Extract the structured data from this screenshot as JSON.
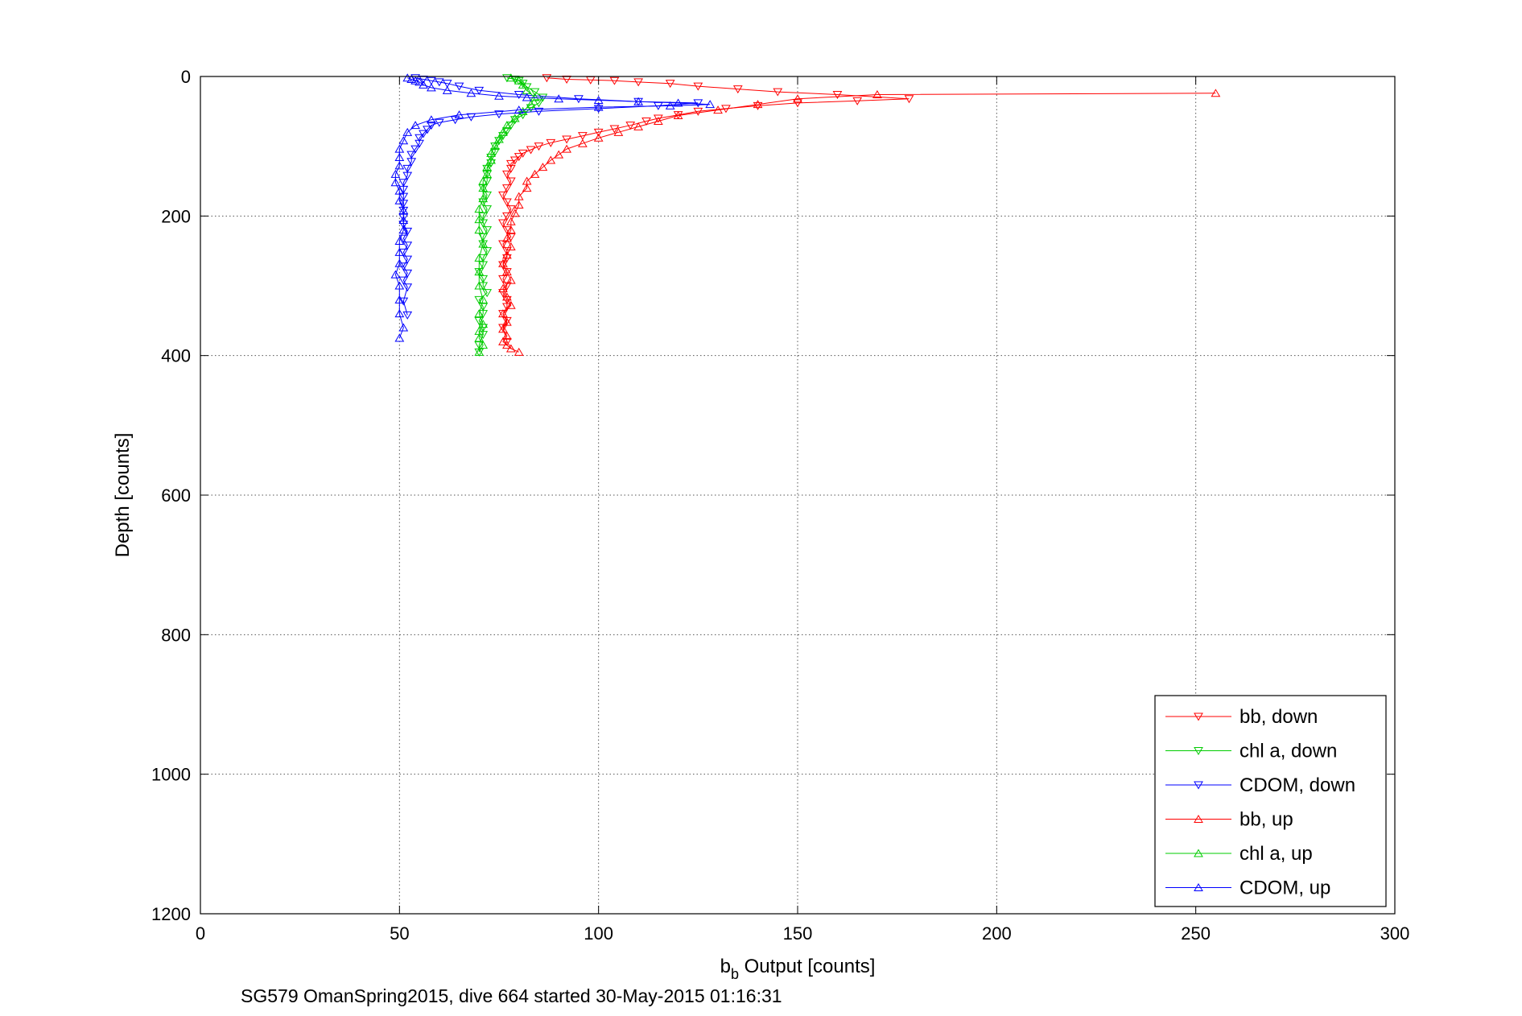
{
  "chart_data": {
    "type": "scatter",
    "xlabel_main": "b",
    "xlabel_sub": "b",
    "xlabel_rest": " Output [counts]",
    "ylabel": "Depth [counts]",
    "caption": "SG579 OmanSpring2015, dive 664 started 30-May-2015 01:16:31",
    "xlim": [
      0,
      300
    ],
    "ylim": [
      0,
      1200
    ],
    "y_reversed": true,
    "grid": true,
    "legend_placement": "bottom-right",
    "x_ticks": [
      0,
      50,
      100,
      150,
      200,
      250,
      300
    ],
    "y_ticks": [
      0,
      200,
      400,
      600,
      800,
      1000,
      1200
    ],
    "x_tick_labels": [
      "0",
      "50",
      "100",
      "150",
      "200",
      "250",
      "300"
    ],
    "y_tick_labels": [
      "0",
      "200",
      "400",
      "600",
      "800",
      "1000",
      "1200"
    ],
    "series": [
      {
        "name": "bb, down",
        "color": "#ff0000",
        "marker": "triangle-down",
        "x": [
          87,
          92,
          98,
          104,
          110,
          118,
          125,
          135,
          145,
          160,
          178,
          165,
          150,
          140,
          132,
          125,
          120,
          115,
          112,
          108,
          104,
          100,
          96,
          92,
          88,
          85,
          83,
          81,
          80,
          79,
          78,
          78,
          77,
          78,
          77,
          76,
          77,
          78,
          77,
          76,
          77,
          78,
          76,
          77,
          77,
          76,
          77,
          76,
          77,
          76,
          77,
          77,
          76,
          77,
          76,
          77
        ],
        "y": [
          2,
          4,
          5,
          6,
          8,
          10,
          14,
          18,
          22,
          26,
          32,
          35,
          38,
          42,
          46,
          50,
          55,
          60,
          64,
          70,
          75,
          80,
          85,
          90,
          95,
          100,
          105,
          110,
          115,
          120,
          125,
          132,
          140,
          150,
          160,
          170,
          180,
          190,
          200,
          210,
          220,
          230,
          240,
          250,
          260,
          270,
          280,
          290,
          300,
          310,
          320,
          330,
          340,
          350,
          360,
          380
        ]
      },
      {
        "name": "chl a, down",
        "color": "#00cc00",
        "marker": "triangle-down",
        "x": [
          77,
          79,
          80,
          81,
          82,
          84,
          86,
          85,
          83,
          81,
          79,
          78,
          77,
          76,
          75,
          74,
          74,
          73,
          73,
          72,
          72,
          72,
          71,
          72,
          71,
          72,
          71,
          71,
          72,
          71,
          71,
          72,
          71,
          71,
          70,
          71,
          71,
          72,
          70,
          71,
          71,
          70,
          71,
          71,
          70,
          70
        ],
        "y": [
          2,
          4,
          6,
          10,
          15,
          22,
          30,
          38,
          45,
          55,
          62,
          70,
          78,
          85,
          92,
          100,
          108,
          116,
          124,
          132,
          140,
          150,
          160,
          170,
          180,
          190,
          200,
          210,
          220,
          230,
          240,
          250,
          260,
          270,
          280,
          290,
          300,
          310,
          320,
          330,
          340,
          350,
          360,
          370,
          385,
          395
        ]
      },
      {
        "name": "CDOM, down",
        "color": "#0000ff",
        "marker": "triangle-down",
        "x": [
          54,
          56,
          58,
          60,
          62,
          65,
          70,
          80,
          95,
          110,
          125,
          115,
          100,
          85,
          75,
          68,
          64,
          60,
          58,
          57,
          56,
          55,
          55,
          54,
          53,
          53,
          52,
          52,
          51,
          51,
          51,
          51,
          51,
          51,
          51,
          52,
          51,
          52,
          51,
          52,
          51,
          52,
          51,
          52,
          51,
          52
        ],
        "y": [
          2,
          4,
          6,
          8,
          10,
          14,
          20,
          26,
          32,
          36,
          38,
          42,
          46,
          50,
          54,
          58,
          62,
          66,
          70,
          76,
          82,
          88,
          96,
          104,
          112,
          122,
          132,
          142,
          152,
          162,
          172,
          182,
          192,
          202,
          212,
          222,
          232,
          242,
          252,
          262,
          272,
          282,
          292,
          302,
          322,
          342
        ]
      },
      {
        "name": "bb, up",
        "color": "#ff0000",
        "marker": "triangle-up",
        "x": [
          255,
          170,
          150,
          140,
          130,
          120,
          115,
          110,
          105,
          100,
          96,
          92,
          90,
          88,
          86,
          84,
          82,
          82,
          80,
          80,
          79,
          78,
          78,
          77,
          78,
          77,
          76,
          77,
          78,
          76,
          77,
          78,
          76,
          77,
          76,
          77,
          76,
          77,
          78,
          80
        ],
        "y": [
          24,
          26,
          32,
          40,
          48,
          56,
          64,
          72,
          80,
          88,
          96,
          104,
          112,
          120,
          130,
          140,
          150,
          160,
          172,
          184,
          196,
          208,
          220,
          232,
          244,
          256,
          268,
          280,
          292,
          304,
          316,
          328,
          340,
          352,
          362,
          372,
          380,
          385,
          390,
          395
        ]
      },
      {
        "name": "chl a, up",
        "color": "#00cc00",
        "marker": "triangle-up",
        "x": [
          78,
          80,
          81,
          82,
          84,
          83,
          81,
          79,
          77,
          76,
          75,
          74,
          73,
          73,
          72,
          72,
          71,
          71,
          71,
          70,
          70,
          70,
          71,
          70,
          70,
          70,
          71,
          70,
          71,
          70,
          70,
          71,
          70
        ],
        "y": [
          2,
          6,
          12,
          20,
          30,
          40,
          50,
          60,
          70,
          80,
          90,
          100,
          110,
          120,
          130,
          140,
          150,
          160,
          175,
          190,
          205,
          220,
          240,
          260,
          280,
          300,
          320,
          340,
          355,
          365,
          375,
          385,
          395
        ]
      },
      {
        "name": "CDOM, up",
        "color": "#0000ff",
        "marker": "triangle-up",
        "x": [
          52,
          53,
          54,
          55,
          56,
          58,
          62,
          68,
          75,
          82,
          90,
          100,
          110,
          120,
          128,
          118,
          100,
          80,
          65,
          58,
          54,
          52,
          51,
          50,
          50,
          50,
          49,
          49,
          50,
          50,
          51,
          51,
          51,
          50,
          50,
          50,
          49,
          50,
          50,
          50,
          51,
          50
        ],
        "y": [
          2,
          4,
          6,
          8,
          12,
          16,
          20,
          24,
          28,
          30,
          32,
          34,
          36,
          38,
          40,
          42,
          44,
          48,
          55,
          62,
          70,
          80,
          92,
          104,
          116,
          128,
          140,
          152,
          164,
          178,
          192,
          206,
          220,
          236,
          252,
          268,
          284,
          300,
          320,
          340,
          360,
          375
        ]
      }
    ]
  }
}
